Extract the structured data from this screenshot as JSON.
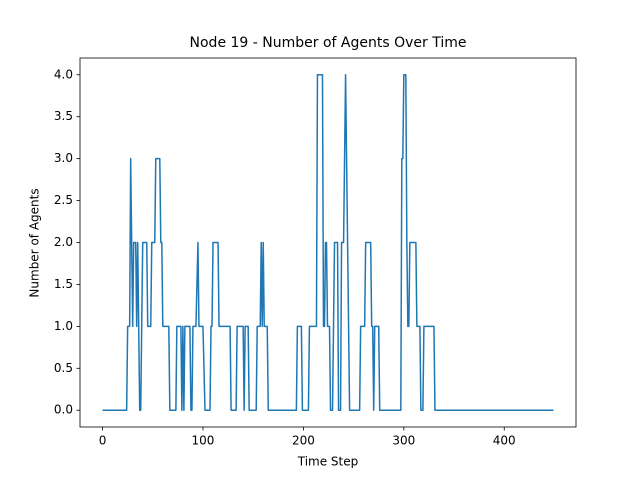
{
  "chart_data": {
    "type": "line",
    "title": "Node 19 - Number of Agents Over Time",
    "xlabel": "Time Step",
    "ylabel": "Number of Agents",
    "series": [
      {
        "color": "#1f77b4",
        "x": [
          0,
          24,
          25,
          27,
          28,
          29,
          30,
          31,
          33,
          34,
          35,
          36,
          37,
          38,
          40,
          44,
          45,
          48,
          49,
          52,
          53,
          57,
          58,
          59,
          60,
          66,
          67,
          73,
          74,
          78,
          79,
          80,
          81,
          82,
          87,
          88,
          89,
          90,
          93,
          95,
          96,
          100,
          102,
          107,
          108,
          109,
          110,
          115,
          116,
          127,
          128,
          133,
          134,
          140,
          141,
          142,
          145,
          146,
          153,
          154,
          157,
          158,
          159,
          160,
          161,
          164,
          165,
          193,
          194,
          198,
          199,
          205,
          206,
          211,
          213,
          214,
          219,
          220,
          221,
          222,
          223,
          224,
          226,
          227,
          229,
          231,
          234,
          235,
          237,
          238,
          240,
          242,
          243,
          244,
          245,
          246,
          256,
          257,
          261,
          262,
          267,
          268,
          269,
          270,
          271,
          275,
          276,
          297,
          298,
          299,
          300,
          302,
          303,
          304,
          305,
          306,
          312,
          313,
          316,
          317,
          319,
          320,
          330,
          331,
          449
        ],
        "values": [
          0,
          0,
          1,
          1,
          3,
          2,
          1,
          2,
          2,
          1,
          2,
          1,
          0,
          0,
          2,
          2,
          1,
          1,
          2,
          2,
          3,
          3,
          2,
          2,
          1,
          1,
          0,
          0,
          1,
          1,
          0,
          1,
          0,
          1,
          1,
          0,
          0,
          1,
          1,
          2,
          1,
          1,
          0,
          0,
          1,
          1,
          2,
          2,
          1,
          1,
          0,
          0,
          1,
          1,
          0,
          1,
          1,
          0,
          0,
          1,
          1,
          2,
          1,
          2,
          1,
          1,
          0,
          0,
          1,
          1,
          0,
          0,
          1,
          1,
          1,
          4,
          4,
          1,
          1,
          2,
          2,
          1,
          1,
          0,
          0,
          2,
          2,
          0,
          0,
          2,
          2,
          4,
          3,
          2,
          1,
          0,
          0,
          1,
          1,
          2,
          2,
          1,
          1,
          0,
          1,
          1,
          0,
          0,
          3,
          3,
          4,
          4,
          2,
          1,
          1,
          2,
          2,
          1,
          1,
          0,
          0,
          1,
          1,
          0,
          0
        ]
      }
    ],
    "xlim": [
      -22.45,
      471.45
    ],
    "xticks": [
      0,
      100,
      200,
      300,
      400
    ],
    "ylim": [
      -0.2,
      4.2
    ],
    "yticks": [
      {
        "value": 0,
        "label": "0.0"
      },
      {
        "value": 0.5,
        "label": "0.5"
      },
      {
        "value": 1,
        "label": "1.0"
      },
      {
        "value": 1.5,
        "label": "1.5"
      },
      {
        "value": 2,
        "label": "2.0"
      },
      {
        "value": 2.5,
        "label": "2.5"
      },
      {
        "value": 3,
        "label": "3.0"
      },
      {
        "value": 3.5,
        "label": "3.5"
      },
      {
        "value": 4,
        "label": "4.0"
      }
    ],
    "grid": false
  }
}
